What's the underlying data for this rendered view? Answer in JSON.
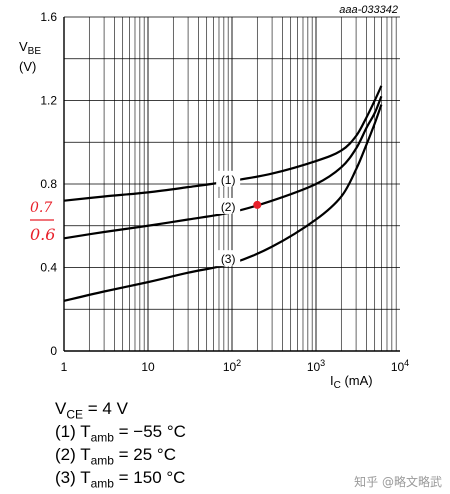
{
  "chart_data": {
    "type": "line",
    "code": "aaa-033342",
    "ylabel_main": "V",
    "ylabel_sub": "BE",
    "ylabel_unit": "(V)",
    "xlabel_main": "I",
    "xlabel_sub": "C",
    "xlabel_unit": " (mA)",
    "x_scale": "log",
    "xlim": [
      1,
      10000
    ],
    "ylim": [
      0,
      1.6
    ],
    "grid": true,
    "x_ticks": [
      {
        "value": 1,
        "base": "1",
        "exp": ""
      },
      {
        "value": 10,
        "base": "10",
        "exp": ""
      },
      {
        "value": 100,
        "base": "10",
        "exp": "2"
      },
      {
        "value": 1000,
        "base": "10",
        "exp": "3"
      },
      {
        "value": 10000,
        "base": "10",
        "exp": "4"
      }
    ],
    "y_ticks": [
      {
        "value": 0,
        "label": "0"
      },
      {
        "value": 0.4,
        "label": "0.4"
      },
      {
        "value": 0.8,
        "label": "0.8"
      },
      {
        "value": 1.2,
        "label": "1.2"
      },
      {
        "value": 1.6,
        "label": "1.6"
      }
    ],
    "series": [
      {
        "name": "(1)",
        "label_x": 90,
        "label_y": 0.82,
        "points": [
          [
            1,
            0.72
          ],
          [
            3,
            0.74
          ],
          [
            10,
            0.76
          ],
          [
            30,
            0.785
          ],
          [
            100,
            0.815
          ],
          [
            300,
            0.85
          ],
          [
            1000,
            0.91
          ],
          [
            2000,
            0.96
          ],
          [
            3000,
            1.03
          ],
          [
            4000,
            1.12
          ],
          [
            5000,
            1.2
          ],
          [
            6000,
            1.27
          ]
        ]
      },
      {
        "name": "(2)",
        "label_x": 90,
        "label_y": 0.69,
        "points": [
          [
            1,
            0.54
          ],
          [
            3,
            0.57
          ],
          [
            10,
            0.6
          ],
          [
            30,
            0.63
          ],
          [
            100,
            0.665
          ],
          [
            300,
            0.72
          ],
          [
            1000,
            0.8
          ],
          [
            2000,
            0.88
          ],
          [
            3000,
            0.97
          ],
          [
            4000,
            1.07
          ],
          [
            5000,
            1.14
          ],
          [
            6000,
            1.22
          ]
        ]
      },
      {
        "name": "(3)",
        "label_x": 90,
        "label_y": 0.44,
        "points": [
          [
            1,
            0.24
          ],
          [
            3,
            0.285
          ],
          [
            10,
            0.33
          ],
          [
            30,
            0.375
          ],
          [
            100,
            0.42
          ],
          [
            300,
            0.5
          ],
          [
            1000,
            0.63
          ],
          [
            2000,
            0.74
          ],
          [
            3000,
            0.87
          ],
          [
            4000,
            0.99
          ],
          [
            5000,
            1.09
          ],
          [
            6000,
            1.18
          ]
        ]
      }
    ],
    "annotation": {
      "label_a": "0.7",
      "label_b": "0.6",
      "x": 200,
      "y": 0.7
    }
  },
  "conditions": {
    "vce": {
      "main": "V",
      "sub": "CE",
      "rest": " = 4 V"
    },
    "c1": {
      "pre": "(1) T",
      "sub": "amb",
      "rest": " = −55 °C"
    },
    "c2": {
      "pre": "(2) T",
      "sub": "amb",
      "rest": " = 25 °C"
    },
    "c3": {
      "pre": "(3) T",
      "sub": "amb",
      "rest": " = 150 °C"
    }
  },
  "watermark": "知乎 @略文略武",
  "colors": {
    "grid": "#000000",
    "curve": "#000000",
    "annotation": "#e8202a"
  }
}
